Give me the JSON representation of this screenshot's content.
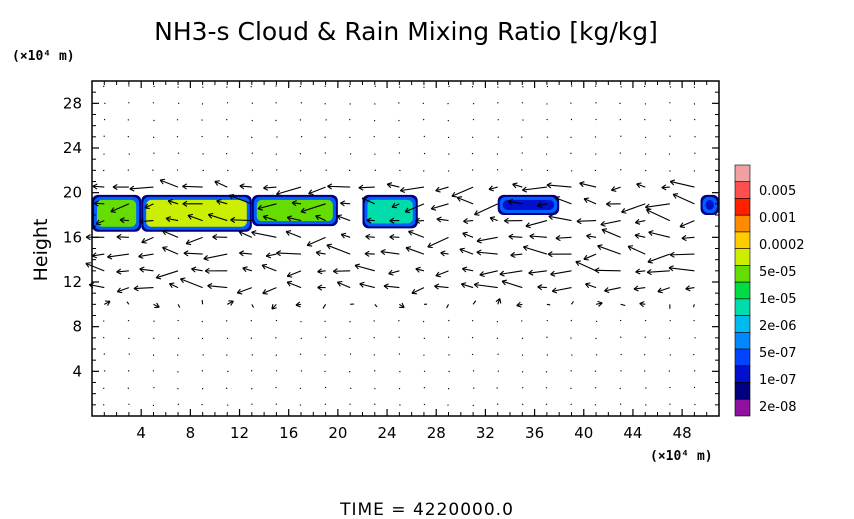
{
  "chart_data": {
    "type": "heatmap",
    "title": "NH3-s Cloud & Rain Mixing Ratio [kg/kg]",
    "xlabel": "",
    "ylabel": "Height",
    "x_unit": "(×10⁴ m)",
    "y_unit": "(×10⁴ m)",
    "xlim": [
      0,
      51
    ],
    "ylim": [
      0,
      30
    ],
    "x_ticks": [
      4,
      8,
      12,
      16,
      20,
      24,
      28,
      32,
      36,
      40,
      44,
      48
    ],
    "x_tick_labels": [
      "4",
      "8",
      "12",
      "16",
      "20",
      "24",
      "28",
      "32",
      "36",
      "40",
      "44",
      "48"
    ],
    "y_ticks": [
      4,
      8,
      12,
      16,
      20,
      24,
      28
    ],
    "y_tick_labels": [
      "4",
      "8",
      "12",
      "16",
      "20",
      "24",
      "28"
    ],
    "colorbar": {
      "labels": [
        "0.005",
        "0.001",
        "0.0002",
        "5e-05",
        "1e-05",
        "2e-06",
        "5e-07",
        "1e-07",
        "2e-08"
      ],
      "colors": [
        "#f0a0a0",
        "#ff5050",
        "#ff2000",
        "#ff8c00",
        "#ffcc00",
        "#ccee00",
        "#66dd00",
        "#00dd44",
        "#00ddaa",
        "#00bbee",
        "#0088ff",
        "#0044ff",
        "#0010cc",
        "#000080",
        "#9010a0"
      ]
    },
    "cloud_regions": [
      {
        "x": [
          0,
          4
        ],
        "y": [
          16.5,
          19.8
        ],
        "level": "5e-05"
      },
      {
        "x": [
          4,
          13
        ],
        "y": [
          16.5,
          19.8
        ],
        "level": "0.0002"
      },
      {
        "x": [
          13,
          20
        ],
        "y": [
          17.0,
          19.8
        ],
        "level": "5e-05"
      },
      {
        "x": [
          22,
          26.5
        ],
        "y": [
          16.8,
          19.8
        ],
        "level": "1e-05"
      },
      {
        "x": [
          33,
          38
        ],
        "y": [
          18.0,
          19.8
        ],
        "level": "1e-07"
      },
      {
        "x": [
          49.5,
          51
        ],
        "y": [
          18.0,
          19.8
        ],
        "level": "1e-07"
      }
    ],
    "footer": "TIME = 4220000.0"
  }
}
